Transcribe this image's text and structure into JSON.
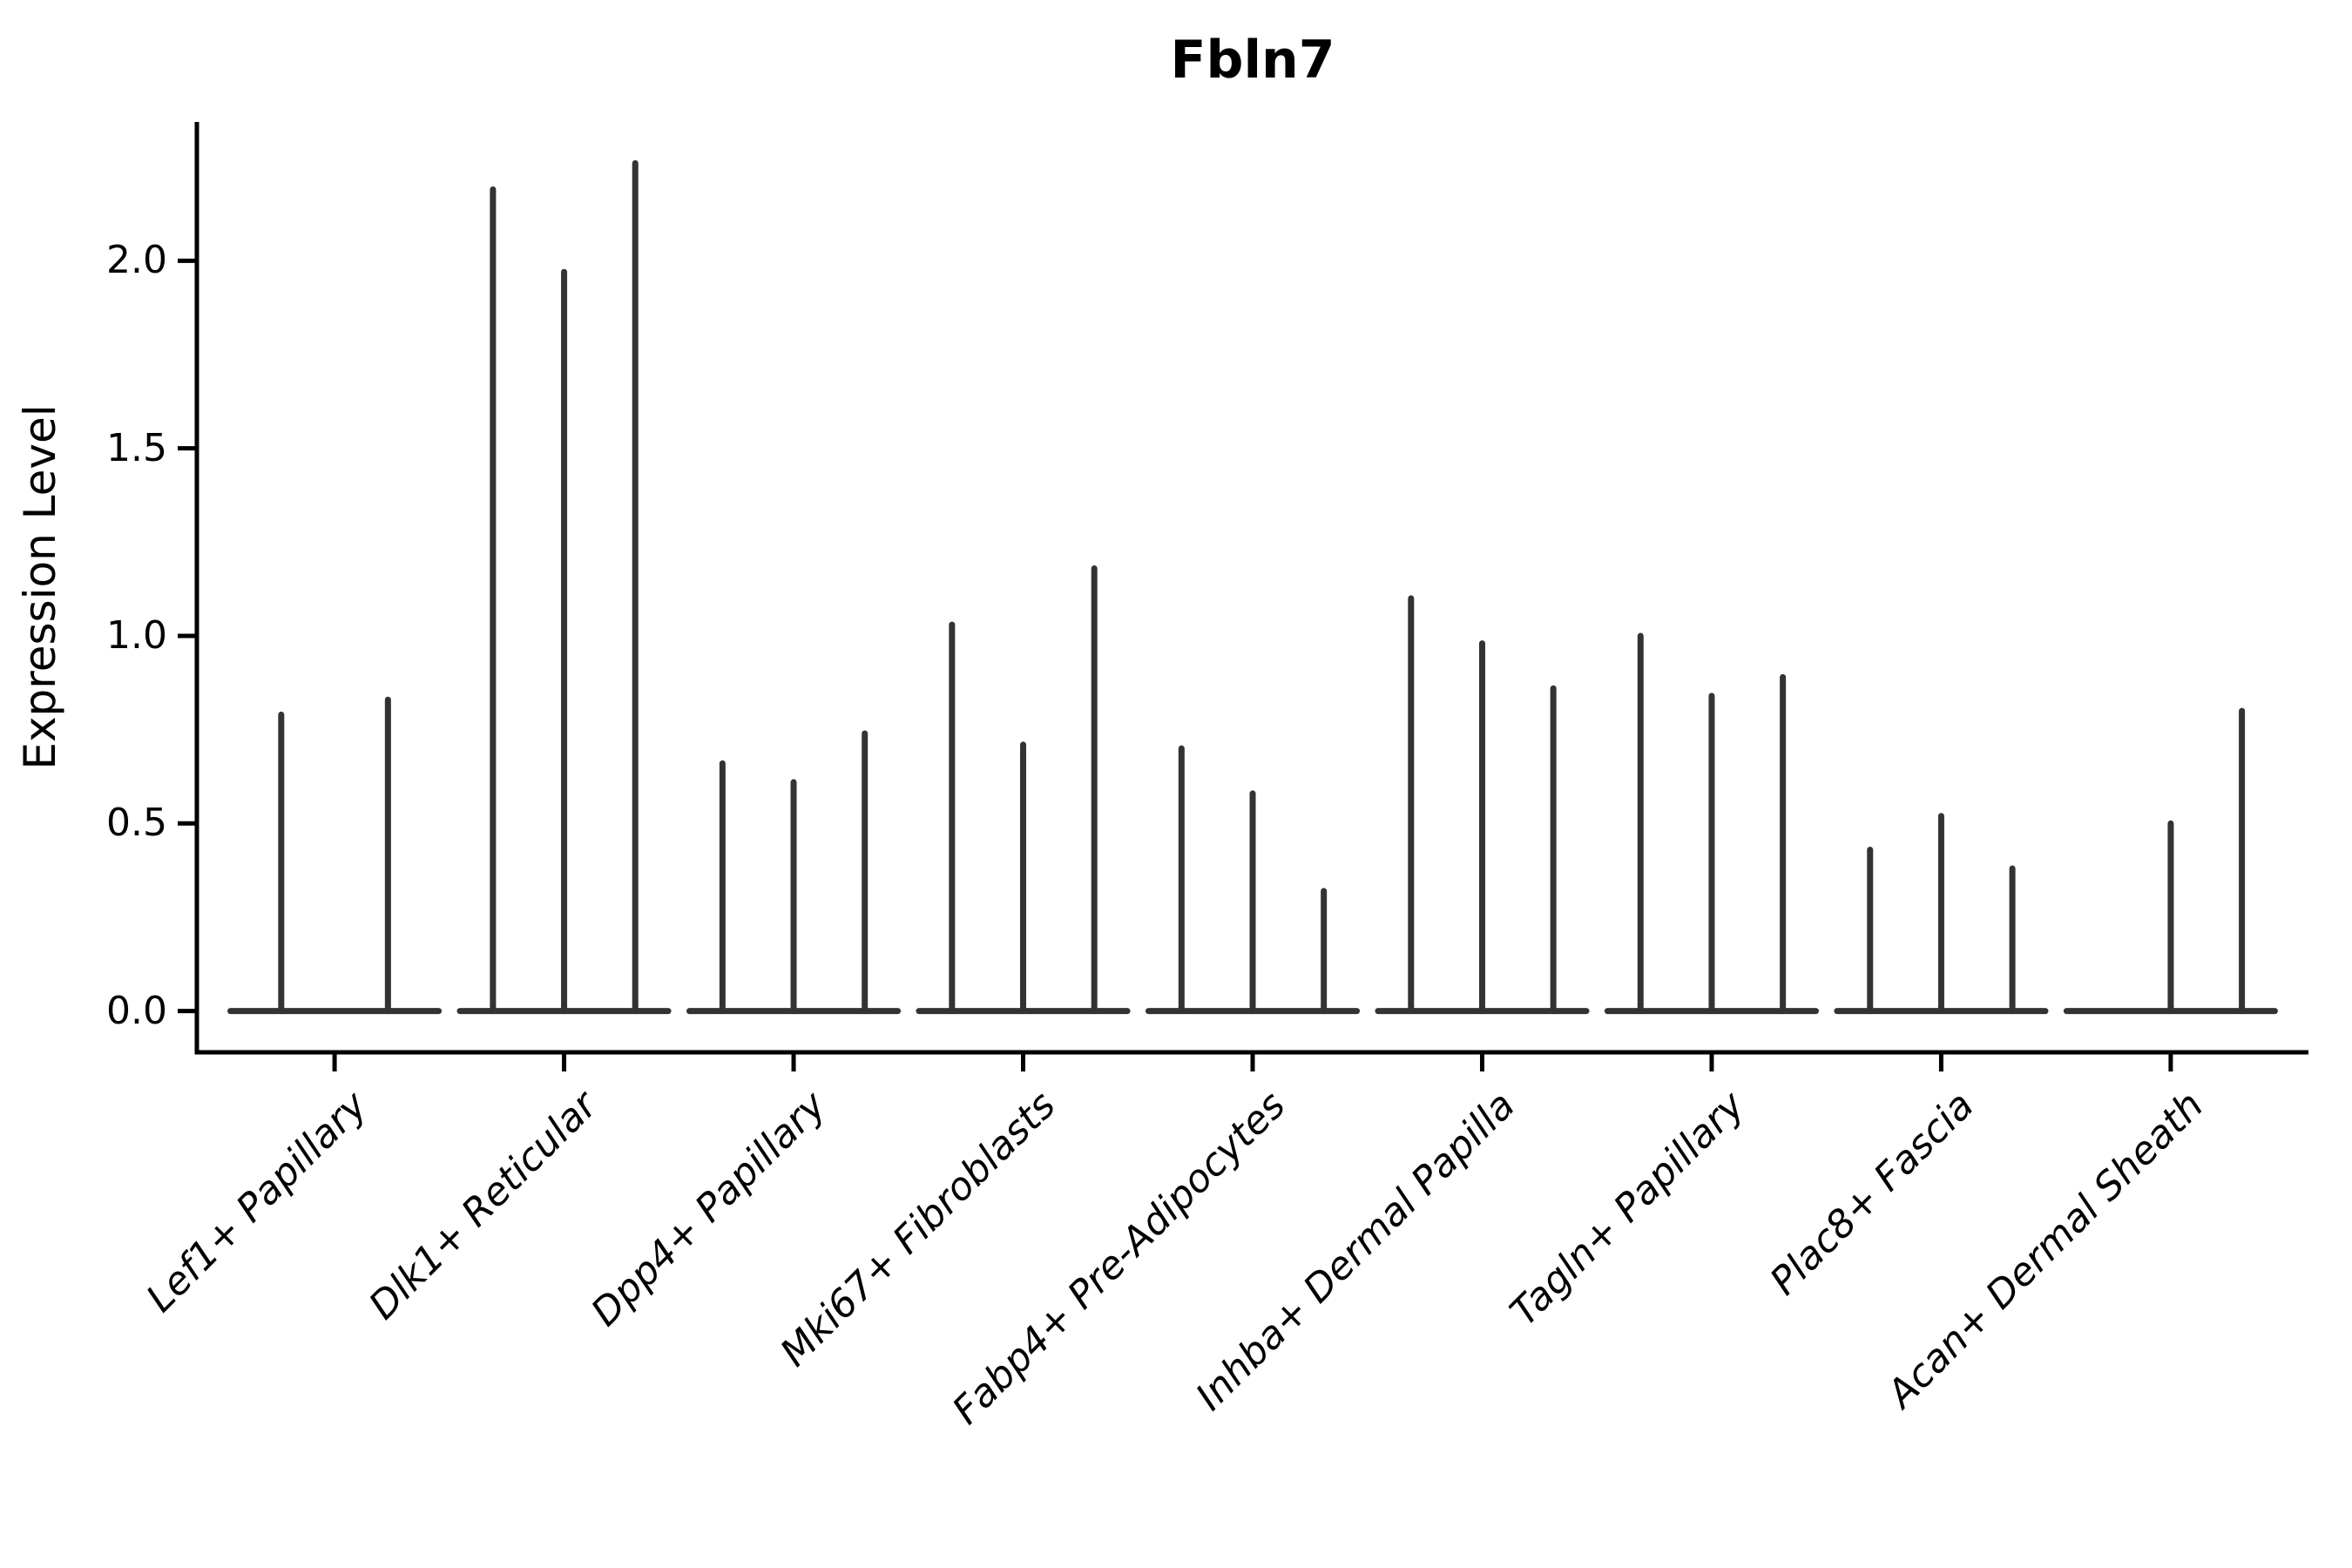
{
  "chart_data": {
    "type": "violin",
    "title": "Fbln7",
    "ylabel": "Expression Level",
    "xlabel": "",
    "ytick_labels": [
      "0.0",
      "0.5",
      "1.0",
      "1.5",
      "2.0"
    ],
    "yticks": [
      0.0,
      0.5,
      1.0,
      1.5,
      2.0
    ],
    "ylim": [
      -0.11,
      2.37
    ],
    "grid": false,
    "legend_position": "none",
    "categories": [
      "Lef1+ Papillary",
      "Dlk1+ Reticular",
      "Dpp4+ Papillary",
      "Mki67+ Fibroblasts",
      "Fabp4+ Pre-Adipocytes",
      "Inhba+ Dermal Papilla",
      "Tagln+ Papillary",
      "Plac8+ Fascia",
      "Acan+ Dermal Sheath"
    ],
    "violin_spike_heights": [
      [
        0.79,
        0.83
      ],
      [
        2.19,
        1.97,
        2.26
      ],
      [
        0.66,
        0.61,
        0.74
      ],
      [
        1.03,
        0.71,
        1.18
      ],
      [
        0.7,
        0.58,
        0.32
      ],
      [
        1.1,
        0.98,
        0.86
      ],
      [
        1.0,
        0.84,
        0.89
      ],
      [
        0.43,
        0.52,
        0.38
      ],
      [
        0.0,
        0.5,
        0.8
      ]
    ],
    "violin_description": "Each category shows 2-3 collapsed violins: a flat baseline at 0 with a thin vertical spike reaching the listed maximum expression value; a 0 entry means a flat violin with no spike.",
    "colors": {
      "violin_stroke": "#333333",
      "axis": "#000000",
      "text": "#000000",
      "background": "#ffffff"
    }
  }
}
